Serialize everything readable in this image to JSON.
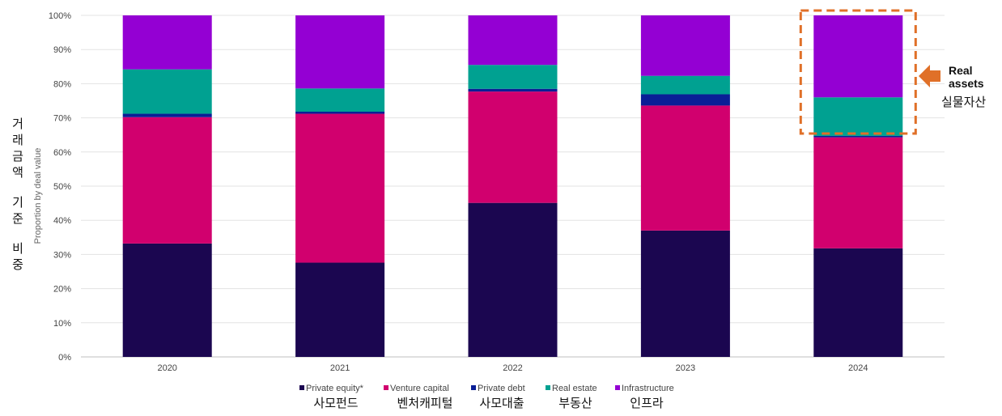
{
  "chart_data": {
    "type": "bar",
    "stacked": true,
    "categories": [
      "2020",
      "2021",
      "2022",
      "2023",
      "2024"
    ],
    "series": [
      {
        "name": "Private equity*",
        "name_ko": "사모펀드",
        "color": "#1b0650",
        "values": [
          33.2,
          27.6,
          45.1,
          37.0,
          31.8
        ]
      },
      {
        "name": "Venture capital",
        "name_ko": "벤처캐피털",
        "color": "#d1006e",
        "values": [
          37.0,
          43.6,
          32.6,
          36.6,
          32.5
        ]
      },
      {
        "name": "Private debt",
        "name_ko": "사모대출",
        "color": "#0a1e96",
        "values": [
          1.0,
          0.6,
          0.8,
          3.3,
          0.4
        ]
      },
      {
        "name": "Real estate",
        "name_ko": "부동산",
        "color": "#00a191",
        "values": [
          13.0,
          6.8,
          7.0,
          5.4,
          11.3
        ]
      },
      {
        "name": "Infrastructure",
        "name_ko": "인프라",
        "color": "#9400d3",
        "values": [
          15.8,
          21.4,
          14.5,
          17.7,
          24.0
        ]
      }
    ],
    "ylabel": "Proportion by deal value",
    "ylabel_ko": "거래금액 기준 비중",
    "ylim": [
      0,
      100
    ],
    "yticks": [
      "0%",
      "10%",
      "20%",
      "30%",
      "40%",
      "50%",
      "60%",
      "70%",
      "80%",
      "90%",
      "100%"
    ],
    "grid": true,
    "legend": "bottom",
    "annotation": {
      "category": "2024",
      "text_en_line1": "Real",
      "text_en_line2": "assets",
      "text_ko": "실물자산",
      "color": "#e07028"
    }
  }
}
